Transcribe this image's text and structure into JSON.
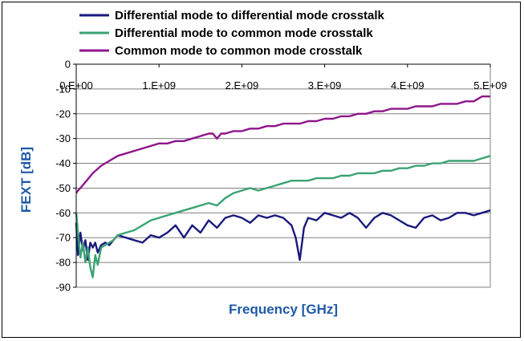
{
  "chart_data": {
    "type": "line",
    "title": "",
    "xlabel": "Frequency [GHz]",
    "ylabel": "FEXT [dB]",
    "xlim": [
      0,
      5000000000
    ],
    "ylim": [
      -90,
      0
    ],
    "x_ticks": [
      0,
      1000000000,
      2000000000,
      3000000000,
      4000000000,
      5000000000
    ],
    "x_tick_labels": [
      "0.E+00",
      "1.E+09",
      "2.E+09",
      "3.E+09",
      "4.E+09",
      "5.E+09"
    ],
    "y_ticks": [
      0,
      -10,
      -20,
      -30,
      -40,
      -50,
      -60,
      -70,
      -80,
      -90
    ],
    "y_tick_labels": [
      "0",
      "-10",
      "-20",
      "-30",
      "-40",
      "-50",
      "-60",
      "-70",
      "-80",
      "-90"
    ],
    "x_tick_position": "top",
    "grid": "horizontal",
    "legend_position": "top",
    "series": [
      {
        "name": "Differential mode to differential mode crosstalk",
        "color": "#1a1a7e",
        "x": [
          0,
          20000000,
          50000000,
          80000000,
          110000000,
          140000000,
          170000000,
          200000000,
          230000000,
          260000000,
          300000000,
          350000000,
          400000000,
          450000000,
          500000000,
          600000000,
          700000000,
          800000000,
          900000000,
          1000000000,
          1100000000,
          1200000000,
          1300000000,
          1400000000,
          1500000000,
          1600000000,
          1700000000,
          1800000000,
          1900000000,
          2000000000,
          2100000000,
          2200000000,
          2300000000,
          2400000000,
          2500000000,
          2600000000,
          2650000000,
          2700000000,
          2750000000,
          2800000000,
          2900000000,
          3000000000,
          3100000000,
          3200000000,
          3300000000,
          3400000000,
          3500000000,
          3600000000,
          3700000000,
          3800000000,
          3900000000,
          4000000000,
          4100000000,
          4200000000,
          4300000000,
          4400000000,
          4500000000,
          4600000000,
          4700000000,
          4800000000,
          4900000000,
          5000000000
        ],
        "values": [
          -64,
          -77,
          -68,
          -75,
          -71,
          -79,
          -72,
          -74,
          -72,
          -76,
          -73,
          -72,
          -73,
          -71,
          -69,
          -70,
          -71,
          -72,
          -69,
          -70,
          -68,
          -65,
          -70,
          -65,
          -68,
          -63,
          -66,
          -62,
          -61,
          -62,
          -64,
          -61,
          -62,
          -61,
          -62,
          -65,
          -70,
          -79,
          -66,
          -62,
          -63,
          -60,
          -61,
          -62,
          -60,
          -62,
          -66,
          -62,
          -60,
          -61,
          -63,
          -65,
          -66,
          -62,
          -61,
          -63,
          -62,
          -60,
          -60,
          -61,
          -60,
          -59
        ]
      },
      {
        "name": "Differential mode to common mode crosstalk",
        "color": "#3aa373",
        "x": [
          0,
          20000000,
          50000000,
          80000000,
          110000000,
          140000000,
          170000000,
          200000000,
          230000000,
          260000000,
          300000000,
          350000000,
          400000000,
          450000000,
          500000000,
          600000000,
          700000000,
          800000000,
          900000000,
          1000000000,
          1100000000,
          1200000000,
          1300000000,
          1400000000,
          1500000000,
          1600000000,
          1700000000,
          1800000000,
          1900000000,
          2000000000,
          2100000000,
          2200000000,
          2300000000,
          2400000000,
          2500000000,
          2600000000,
          2700000000,
          2800000000,
          2900000000,
          3000000000,
          3100000000,
          3200000000,
          3300000000,
          3400000000,
          3500000000,
          3600000000,
          3700000000,
          3800000000,
          3900000000,
          4000000000,
          4100000000,
          4200000000,
          4300000000,
          4400000000,
          4500000000,
          4600000000,
          4700000000,
          4800000000,
          4900000000,
          5000000000
        ],
        "values": [
          -60,
          -68,
          -78,
          -72,
          -80,
          -74,
          -82,
          -86,
          -77,
          -81,
          -74,
          -73,
          -72,
          -71,
          -69,
          -68,
          -67,
          -65,
          -63,
          -62,
          -61,
          -60,
          -59,
          -58,
          -57,
          -56,
          -57,
          -54,
          -52,
          -51,
          -50,
          -51,
          -50,
          -49,
          -48,
          -47,
          -47,
          -47,
          -46,
          -46,
          -46,
          -45,
          -45,
          -44,
          -44,
          -44,
          -43,
          -43,
          -42,
          -42,
          -41,
          -41,
          -40,
          -40,
          -39,
          -39,
          -39,
          -39,
          -38,
          -37
        ]
      },
      {
        "name": "Common mode to common mode crosstalk",
        "color": "#8e168c",
        "x": [
          0,
          20000000,
          50000000,
          100000000,
          150000000,
          200000000,
          300000000,
          400000000,
          500000000,
          600000000,
          700000000,
          800000000,
          900000000,
          1000000000,
          1100000000,
          1200000000,
          1300000000,
          1400000000,
          1500000000,
          1600000000,
          1650000000,
          1700000000,
          1750000000,
          1800000000,
          1900000000,
          2000000000,
          2100000000,
          2200000000,
          2300000000,
          2400000000,
          2500000000,
          2600000000,
          2700000000,
          2800000000,
          2900000000,
          3000000000,
          3100000000,
          3200000000,
          3300000000,
          3400000000,
          3500000000,
          3600000000,
          3700000000,
          3800000000,
          3900000000,
          4000000000,
          4100000000,
          4200000000,
          4300000000,
          4400000000,
          4500000000,
          4600000000,
          4700000000,
          4800000000,
          4900000000,
          5000000000
        ],
        "values": [
          -52,
          -51,
          -50,
          -48,
          -46,
          -44,
          -41,
          -39,
          -37,
          -36,
          -35,
          -34,
          -33,
          -32,
          -32,
          -31,
          -31,
          -30,
          -29,
          -28,
          -28,
          -30,
          -28,
          -28,
          -27,
          -27,
          -26,
          -26,
          -25,
          -25,
          -24,
          -24,
          -24,
          -23,
          -23,
          -22,
          -22,
          -21,
          -21,
          -20,
          -20,
          -19,
          -19,
          -18,
          -18,
          -18,
          -17,
          -17,
          -17,
          -16,
          -16,
          -16,
          -15,
          -15,
          -13,
          -13
        ]
      }
    ]
  }
}
